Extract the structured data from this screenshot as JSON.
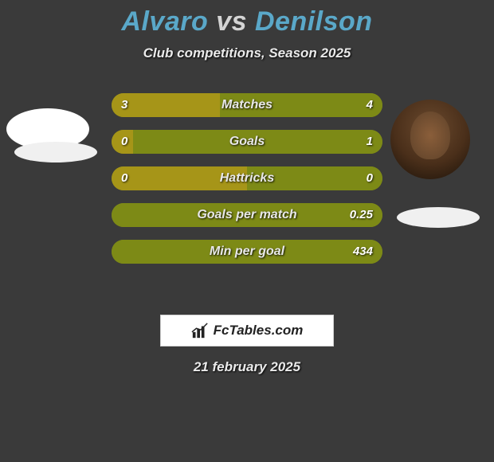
{
  "bg_color": "#3a3a3a",
  "title": {
    "player1": "Alvaro",
    "vs": "vs",
    "player2": "Denilson",
    "player1_color": "#5aa8c9",
    "vs_color": "#d4d4d4",
    "player2_color": "#5aa8c9",
    "fontsize": 34
  },
  "subtitle": "Club competitions, Season 2025",
  "colors": {
    "left_bar": "#a69518",
    "right_bar": "#7d8a16",
    "neutral_bar": "#808a18",
    "bar_fill_bg": "#808a18"
  },
  "bars": [
    {
      "label": "Matches",
      "left": "3",
      "right": "4",
      "left_pct": 40,
      "right_pct": 60
    },
    {
      "label": "Goals",
      "left": "0",
      "right": "1",
      "left_pct": 8,
      "right_pct": 92
    },
    {
      "label": "Hattricks",
      "left": "0",
      "right": "0",
      "left_pct": 50,
      "right_pct": 50
    },
    {
      "label": "Goals per match",
      "left": "",
      "right": "0.25",
      "left_pct": 0,
      "right_pct": 100
    },
    {
      "label": "Min per goal",
      "left": "",
      "right": "434",
      "left_pct": 0,
      "right_pct": 100
    }
  ],
  "branding": "FcTables.com",
  "date": "21 february 2025",
  "avatars": {
    "left_bg": "#ffffff",
    "right_bg": "#4a2f1a",
    "badge_bg": "#f0f0f0"
  }
}
